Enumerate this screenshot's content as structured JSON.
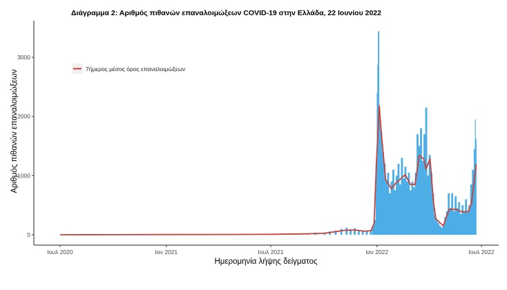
{
  "chart_data": {
    "type": "bar",
    "title": "Διάγραμμα 2: Αριθμός πιθανών επαναλοιμώξεων COVID-19 στην Ελλάδα, 22 Ιουνίου 2022",
    "xlabel": "Ημερομηνία λήψης δείγματος",
    "ylabel": "Αριθμός πιθανών επαναλοιμώξεων",
    "x_ticks": [
      {
        "date": "2020-07-01",
        "label": "Ιουλ 2020"
      },
      {
        "date": "2021-01-01",
        "label": "Ιαν 2021"
      },
      {
        "date": "2021-07-01",
        "label": "Ιουλ 2021"
      },
      {
        "date": "2022-01-01",
        "label": "Ιαν 2022"
      },
      {
        "date": "2022-07-01",
        "label": "Ιουλ 2022"
      }
    ],
    "y_ticks": [
      0,
      1000,
      2000,
      3000
    ],
    "xlim": [
      "2020-06-15",
      "2022-07-15"
    ],
    "ylim": [
      -100,
      3600
    ],
    "grid": false,
    "legend": {
      "position": "top-left",
      "entries": [
        {
          "name": "7ήμερος μέσος όρος επαναλοιμώξεων",
          "color": "#c9423a"
        }
      ]
    },
    "colors": {
      "bars": "#4daee6",
      "line": "#c9423a"
    },
    "bars": [
      [
        "2021-08-01",
        10
      ],
      [
        "2021-08-15",
        15
      ],
      [
        "2021-09-01",
        25
      ],
      [
        "2021-09-15",
        35
      ],
      [
        "2021-10-01",
        40
      ],
      [
        "2021-10-10",
        55
      ],
      [
        "2021-10-20",
        70
      ],
      [
        "2021-10-30",
        100
      ],
      [
        "2021-11-08",
        120
      ],
      [
        "2021-11-15",
        95
      ],
      [
        "2021-11-22",
        110
      ],
      [
        "2021-11-29",
        80
      ],
      [
        "2021-12-06",
        70
      ],
      [
        "2021-12-13",
        60
      ],
      [
        "2021-12-20",
        80
      ],
      [
        "2021-12-24",
        150
      ],
      [
        "2021-12-27",
        250
      ],
      [
        "2021-12-30",
        1200
      ],
      [
        "2022-01-01",
        2400
      ],
      [
        "2022-01-02",
        2870
      ],
      [
        "2022-01-03",
        3440
      ],
      [
        "2022-01-05",
        2000
      ],
      [
        "2022-01-07",
        1750
      ],
      [
        "2022-01-10",
        1400
      ],
      [
        "2022-01-13",
        1200
      ],
      [
        "2022-01-16",
        900
      ],
      [
        "2022-01-19",
        1050
      ],
      [
        "2022-01-22",
        700
      ],
      [
        "2022-01-25",
        900
      ],
      [
        "2022-01-28",
        1100
      ],
      [
        "2022-01-31",
        750
      ],
      [
        "2022-02-03",
        1000
      ],
      [
        "2022-02-06",
        1200
      ],
      [
        "2022-02-09",
        850
      ],
      [
        "2022-02-12",
        1300
      ],
      [
        "2022-02-15",
        950
      ],
      [
        "2022-02-18",
        1150
      ],
      [
        "2022-02-21",
        900
      ],
      [
        "2022-02-24",
        1050
      ],
      [
        "2022-02-27",
        750
      ],
      [
        "2022-03-02",
        900
      ],
      [
        "2022-03-05",
        800
      ],
      [
        "2022-03-08",
        1050
      ],
      [
        "2022-03-11",
        1700
      ],
      [
        "2022-03-14",
        1500
      ],
      [
        "2022-03-17",
        1800
      ],
      [
        "2022-03-20",
        1250
      ],
      [
        "2022-03-23",
        1700
      ],
      [
        "2022-03-26",
        2150
      ],
      [
        "2022-03-29",
        1000
      ],
      [
        "2022-04-01",
        1350
      ],
      [
        "2022-04-04",
        1050
      ],
      [
        "2022-04-07",
        700
      ],
      [
        "2022-04-10",
        350
      ],
      [
        "2022-04-13",
        250
      ],
      [
        "2022-04-16",
        200
      ],
      [
        "2022-04-19",
        150
      ],
      [
        "2022-04-22",
        120
      ],
      [
        "2022-04-25",
        150
      ],
      [
        "2022-04-28",
        300
      ],
      [
        "2022-05-01",
        400
      ],
      [
        "2022-05-04",
        700
      ],
      [
        "2022-05-07",
        450
      ],
      [
        "2022-05-10",
        700
      ],
      [
        "2022-05-13",
        400
      ],
      [
        "2022-05-16",
        650
      ],
      [
        "2022-05-19",
        450
      ],
      [
        "2022-05-22",
        550
      ],
      [
        "2022-05-25",
        350
      ],
      [
        "2022-05-28",
        500
      ],
      [
        "2022-05-31",
        400
      ],
      [
        "2022-06-03",
        600
      ],
      [
        "2022-06-06",
        400
      ],
      [
        "2022-06-09",
        500
      ],
      [
        "2022-06-12",
        850
      ],
      [
        "2022-06-15",
        1100
      ],
      [
        "2022-06-18",
        1450
      ],
      [
        "2022-06-20",
        1950
      ],
      [
        "2022-06-21",
        1620
      ]
    ],
    "moving_average": [
      [
        "2020-07-01",
        0
      ],
      [
        "2020-10-01",
        1
      ],
      [
        "2021-01-01",
        3
      ],
      [
        "2021-04-01",
        5
      ],
      [
        "2021-07-01",
        8
      ],
      [
        "2021-09-01",
        15
      ],
      [
        "2021-10-01",
        25
      ],
      [
        "2021-10-20",
        50
      ],
      [
        "2021-11-05",
        75
      ],
      [
        "2021-11-25",
        80
      ],
      [
        "2021-12-10",
        60
      ],
      [
        "2021-12-22",
        70
      ],
      [
        "2021-12-27",
        200
      ],
      [
        "2021-12-31",
        1200
      ],
      [
        "2022-01-05",
        2180
      ],
      [
        "2022-01-08",
        1785
      ],
      [
        "2022-01-16",
        935
      ],
      [
        "2022-01-26",
        780
      ],
      [
        "2022-02-03",
        875
      ],
      [
        "2022-02-19",
        1015
      ],
      [
        "2022-02-28",
        850
      ],
      [
        "2022-03-08",
        850
      ],
      [
        "2022-03-15",
        1340
      ],
      [
        "2022-03-23",
        1285
      ],
      [
        "2022-03-27",
        1110
      ],
      [
        "2022-04-03",
        1285
      ],
      [
        "2022-04-09",
        550
      ],
      [
        "2022-04-13",
        270
      ],
      [
        "2022-04-26",
        150
      ],
      [
        "2022-05-06",
        430
      ],
      [
        "2022-05-18",
        430
      ],
      [
        "2022-05-27",
        390
      ],
      [
        "2022-06-08",
        390
      ],
      [
        "2022-06-14",
        550
      ],
      [
        "2022-06-22",
        1190
      ]
    ]
  }
}
